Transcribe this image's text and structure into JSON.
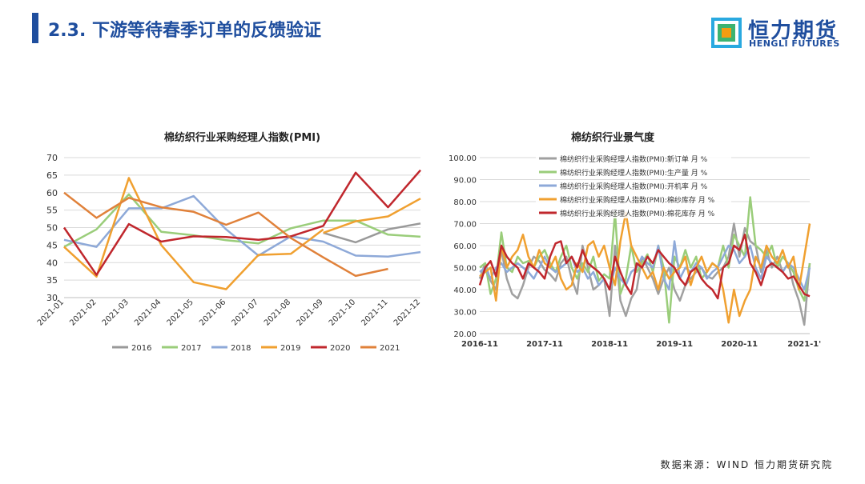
{
  "header": {
    "title": "2.3. 下游等待春季订单的反馈验证",
    "logo_cn": "恒力期货",
    "logo_en": "HENGLI FUTURES"
  },
  "source": "数据来源：WIND 恒力期货研究院",
  "colors": {
    "brand": "#1f4e9e",
    "logo_orange": "#f39c12",
    "logo_green": "#3cb371",
    "logo_cyan": "#29a9e0"
  },
  "chart_data": [
    {
      "type": "line",
      "title": "棉纺织行业采购经理人指数(PMI)",
      "categories": [
        "2021-01",
        "2021-02",
        "2021-03",
        "2021-04",
        "2021-05",
        "2021-06",
        "2021-07",
        "2021-08",
        "2021-09",
        "2021-10",
        "2021-11",
        "2021-12"
      ],
      "ylim": [
        30,
        70
      ],
      "yticks": [
        30,
        35,
        40,
        45,
        50,
        55,
        60,
        65,
        70
      ],
      "grid": true,
      "legend": "bottom",
      "series": [
        {
          "name": "2016",
          "color": "#999999",
          "values": [
            null,
            null,
            null,
            null,
            null,
            null,
            null,
            null,
            48.5,
            45.8,
            49.5,
            51.2
          ]
        },
        {
          "name": "2017",
          "color": "#9acd7a",
          "values": [
            44.5,
            49.5,
            59.5,
            48.8,
            47.8,
            46.4,
            45.5,
            49.8,
            52,
            52,
            48,
            47.4
          ]
        },
        {
          "name": "2018",
          "color": "#8ea9d8",
          "values": [
            46.5,
            44.5,
            55.5,
            55.5,
            59,
            49.5,
            42,
            47.5,
            46,
            42,
            41.7,
            43
          ]
        },
        {
          "name": "2019",
          "color": "#f0a030",
          "values": [
            44.5,
            36,
            64.2,
            45,
            34.4,
            32.4,
            42.2,
            42.5,
            49.5,
            null,
            null,
            null
          ]
        },
        {
          "name": "2020",
          "color": "#c0272d",
          "values": [
            50,
            36.5,
            51,
            46,
            47.5,
            47.3,
            46.5,
            47.5,
            50.5,
            65.7,
            55.8,
            66.4
          ]
        },
        {
          "name": "2021",
          "color": "#e0813a",
          "values": [
            60,
            52.8,
            58.5,
            55.8,
            54.5,
            50.8,
            54.3,
            47,
            41.5,
            36.2,
            38.2,
            null
          ]
        },
        {
          "name": "",
          "color": "#f0a030",
          "values": [
            null,
            null,
            null,
            null,
            null,
            null,
            null,
            null,
            48.5,
            51.8,
            53.2,
            58.3
          ]
        }
      ]
    },
    {
      "type": "line",
      "title": "棉纺织行业景气度",
      "x_tick_labels": [
        "2016-11",
        "2017-11",
        "2018-11",
        "2019-11",
        "2020-11",
        "2021-1'"
      ],
      "x_count": 62,
      "x_tick_index": [
        0,
        12,
        24,
        36,
        48,
        60
      ],
      "ylim": [
        20,
        100
      ],
      "yticks": [
        "20.00",
        "30.00",
        "40.00",
        "50.00",
        "60.00",
        "70.00",
        "80.00",
        "90.00",
        "100.00"
      ],
      "grid": true,
      "legend": "top",
      "series": [
        {
          "name": "棉纺织行业采购经理人指数(PMI):新订单 月 %",
          "color": "#a0a0a0",
          "values": [
            45,
            52,
            44,
            40,
            58,
            45,
            38,
            36,
            42,
            50,
            55,
            53,
            49,
            47,
            44,
            52,
            55,
            45,
            38,
            60,
            50,
            40,
            42,
            45,
            28,
            60,
            35,
            28,
            36,
            40,
            55,
            50,
            45,
            38,
            45,
            50,
            40,
            35,
            42,
            45,
            48,
            50,
            46,
            45,
            48,
            50,
            55,
            70,
            55,
            68,
            62,
            60,
            48,
            58,
            50,
            55,
            48,
            52,
            42,
            35,
            24,
            52
          ]
        },
        {
          "name": "棉纺织行业采购经理人指数(PMI):生产量 月 %",
          "color": "#9acd7a",
          "values": [
            50,
            52,
            38,
            45,
            66,
            50,
            48,
            55,
            52,
            53,
            50,
            55,
            58,
            52,
            48,
            55,
            60,
            50,
            45,
            52,
            48,
            55,
            44,
            47,
            45,
            75,
            38,
            45,
            60,
            48,
            52,
            56,
            48,
            60,
            50,
            25,
            55,
            50,
            58,
            50,
            55,
            45,
            48,
            52,
            50,
            60,
            50,
            65,
            60,
            55,
            82,
            60,
            58,
            55,
            60,
            50,
            55,
            52,
            48,
            40,
            35,
            52
          ]
        },
        {
          "name": "棉纺织行业采购经理人指数(PMI):开机率 月 %",
          "color": "#8ea9d8",
          "values": [
            48,
            50,
            45,
            50,
            52,
            48,
            50,
            52,
            50,
            48,
            45,
            50,
            55,
            50,
            48,
            50,
            52,
            55,
            48,
            50,
            45,
            48,
            42,
            45,
            40,
            50,
            45,
            42,
            48,
            50,
            55,
            52,
            50,
            60,
            45,
            40,
            62,
            45,
            50,
            48,
            52,
            50,
            45,
            48,
            50,
            55,
            60,
            58,
            52,
            55,
            60,
            50,
            45,
            55,
            52,
            50,
            48,
            52,
            50,
            45,
            40,
            50
          ]
        },
        {
          "name": "棉纺织行业采购经理人指数(PMI):棉纱库存 月 %",
          "color": "#f0a030",
          "values": [
            46,
            48,
            50,
            35,
            60,
            50,
            55,
            58,
            65,
            55,
            50,
            58,
            52,
            50,
            55,
            45,
            40,
            42,
            52,
            48,
            60,
            62,
            55,
            60,
            50,
            42,
            62,
            75,
            60,
            55,
            50,
            45,
            48,
            40,
            50,
            45,
            48,
            50,
            55,
            42,
            50,
            55,
            48,
            52,
            50,
            40,
            25,
            40,
            28,
            35,
            40,
            55,
            50,
            60,
            55,
            52,
            58,
            50,
            55,
            40,
            55,
            70
          ]
        },
        {
          "name": "棉纺织行业采购经理人指数(PMI):棉花库存 月 %",
          "color": "#c0272d",
          "values": [
            42,
            50,
            53,
            46,
            60,
            55,
            52,
            50,
            45,
            52,
            50,
            48,
            45,
            55,
            61,
            62,
            52,
            55,
            50,
            58,
            52,
            50,
            48,
            45,
            40,
            55,
            48,
            42,
            38,
            52,
            50,
            55,
            52,
            58,
            55,
            52,
            50,
            45,
            42,
            48,
            50,
            45,
            42,
            40,
            36,
            50,
            52,
            60,
            58,
            65,
            52,
            48,
            42,
            50,
            52,
            50,
            48,
            45,
            46,
            42,
            38,
            37
          ]
        }
      ]
    }
  ]
}
